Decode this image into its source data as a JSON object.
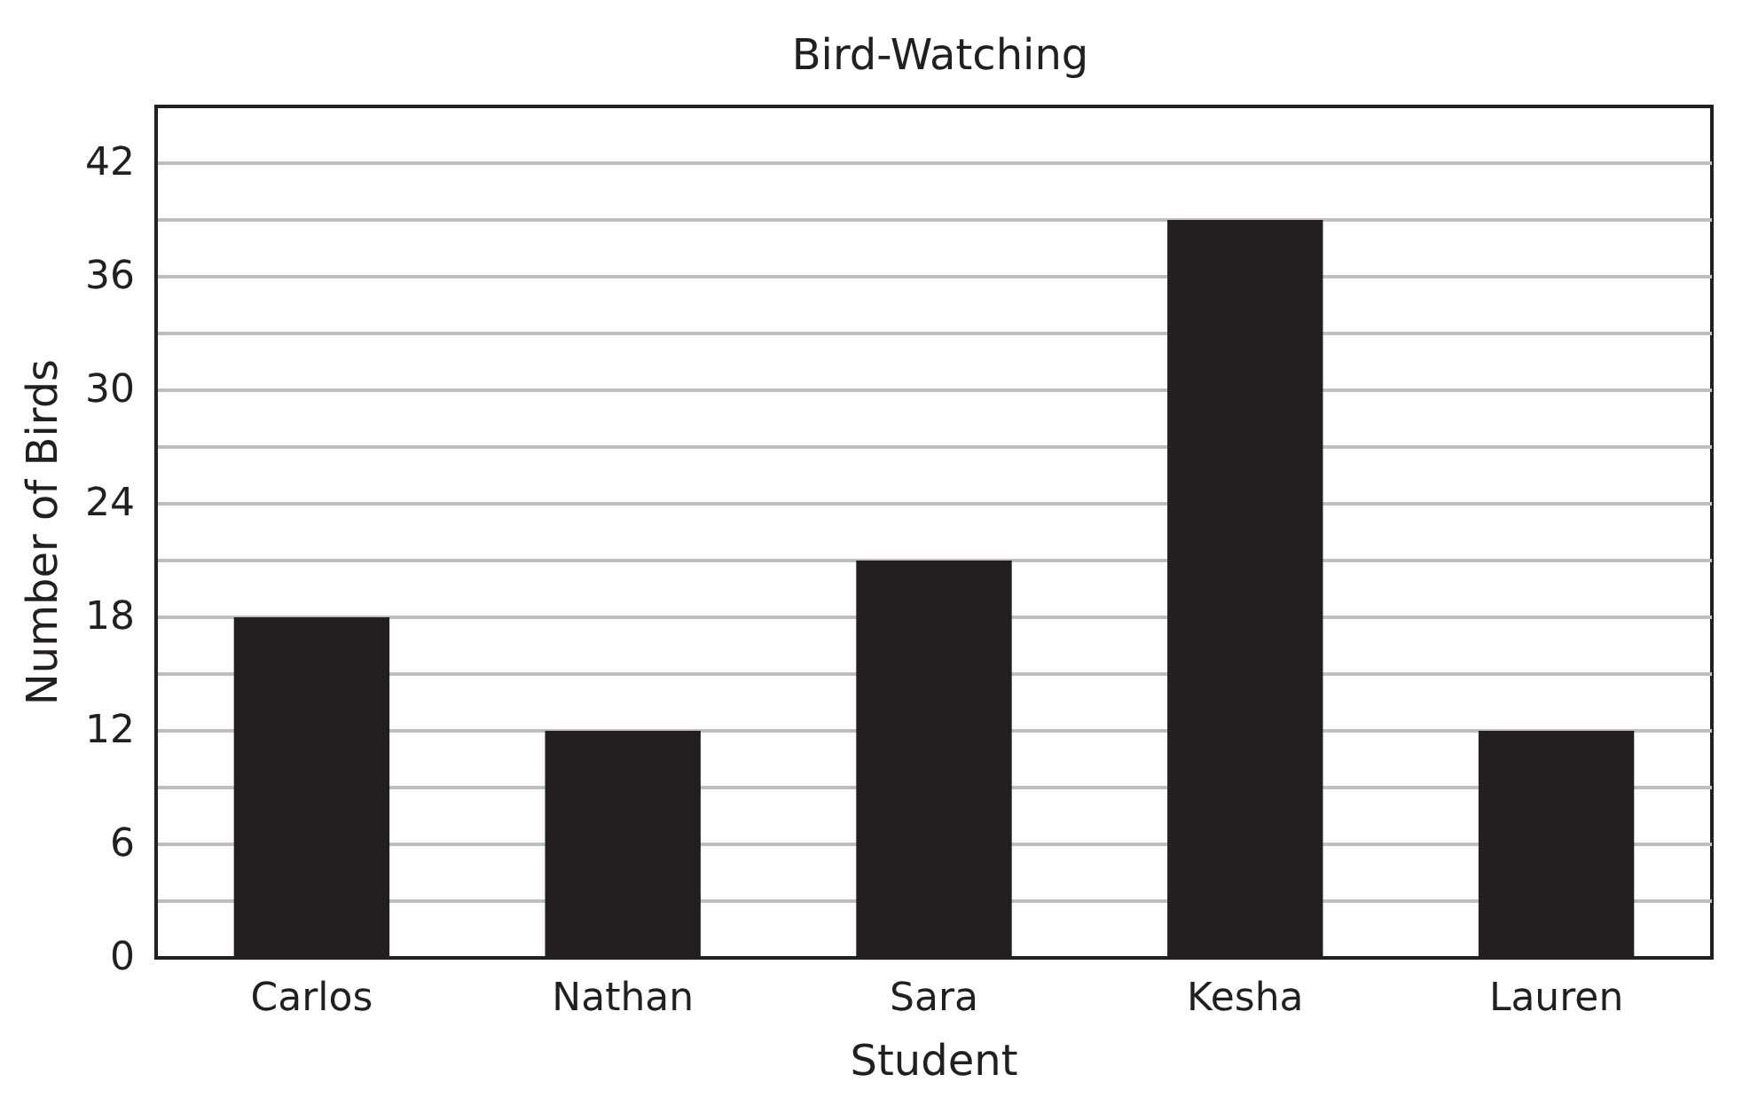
{
  "chart_data": {
    "type": "bar",
    "title": "Bird-Watching",
    "xlabel": "Student",
    "ylabel": "Number of Birds",
    "categories": [
      "Carlos",
      "Nathan",
      "Sara",
      "Kesha",
      "Lauren"
    ],
    "values": [
      18,
      12,
      21,
      39,
      12
    ],
    "color": "#231f20",
    "ylim": [
      0,
      45
    ],
    "yticks": [
      0,
      {
        "value": 3,
        "label": null
      },
      6,
      {
        "value": 9,
        "label": null
      },
      12,
      {
        "value": 15,
        "label": null
      },
      18,
      {
        "value": 21,
        "label": null
      },
      24,
      {
        "value": 27,
        "label": null
      },
      30,
      {
        "value": 33,
        "label": null
      },
      36,
      {
        "value": 39,
        "label": null
      },
      42
    ],
    "grid": "y"
  }
}
